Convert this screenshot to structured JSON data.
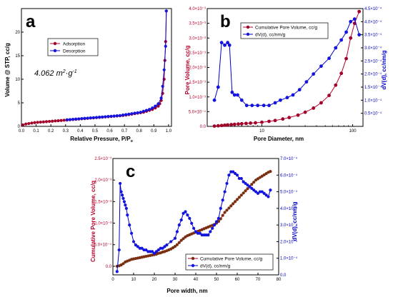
{
  "chart_data": [
    {
      "id": "a",
      "type": "line",
      "panel_label": "a",
      "xlabel": "Relative Pressure, P/P",
      "xlabel_sub": "o",
      "ylabel": "Volume @ STP, cc/g",
      "xlim": [
        0.0,
        1.02
      ],
      "ylim": [
        0,
        25
      ],
      "xticks": [
        0.0,
        0.1,
        0.2,
        0.3,
        0.4,
        0.5,
        0.6,
        0.7,
        0.8,
        0.9,
        1.0
      ],
      "xtick_labels": [
        "0.0",
        "0.1",
        "0.2",
        "0.3",
        "0.4",
        "0.5",
        "0.6",
        "0.7",
        "0.8",
        "0.9",
        "1.0"
      ],
      "yticks": [
        0,
        5,
        10,
        15,
        20
      ],
      "ytick_labels": [
        "0",
        "5",
        "10",
        "15",
        "20"
      ],
      "annotation": {
        "text": "4.062 m",
        "sup1": "2",
        "mid": "·g",
        "sup2": "-1"
      },
      "legend_position": "top-center",
      "series": [
        {
          "name": "Adsorption",
          "color": "#b8002a",
          "marker_color": "#a0002a",
          "x": [
            0.01,
            0.03,
            0.05,
            0.07,
            0.09,
            0.11,
            0.13,
            0.15,
            0.17,
            0.19,
            0.21,
            0.23,
            0.25,
            0.27,
            0.29,
            0.31,
            0.33,
            0.35,
            0.37,
            0.39,
            0.41,
            0.43,
            0.45,
            0.47,
            0.49,
            0.51,
            0.53,
            0.55,
            0.57,
            0.59,
            0.61,
            0.63,
            0.65,
            0.67,
            0.69,
            0.71,
            0.73,
            0.75,
            0.77,
            0.79,
            0.81,
            0.83,
            0.85,
            0.87,
            0.89,
            0.91,
            0.93,
            0.94,
            0.95,
            0.96,
            0.97,
            0.975,
            0.98,
            0.985
          ],
          "y": [
            0.3,
            0.5,
            0.6,
            0.7,
            0.8,
            0.85,
            0.9,
            0.95,
            1.0,
            1.05,
            1.1,
            1.15,
            1.2,
            1.25,
            1.3,
            1.35,
            1.4,
            1.45,
            1.5,
            1.55,
            1.6,
            1.65,
            1.7,
            1.75,
            1.8,
            1.85,
            1.9,
            1.95,
            2.0,
            2.05,
            2.1,
            2.15,
            2.2,
            2.25,
            2.3,
            2.4,
            2.5,
            2.6,
            2.7,
            2.8,
            2.9,
            3.0,
            3.2,
            3.4,
            3.6,
            3.9,
            4.3,
            4.8,
            5.5,
            7.0,
            10.0,
            14.0,
            18.0,
            24.5
          ]
        },
        {
          "name": "Desorption",
          "color": "#0000c8",
          "marker_color": "#1414e0",
          "x": [
            0.31,
            0.33,
            0.35,
            0.37,
            0.39,
            0.41,
            0.43,
            0.45,
            0.47,
            0.49,
            0.51,
            0.53,
            0.55,
            0.57,
            0.59,
            0.61,
            0.63,
            0.65,
            0.67,
            0.69,
            0.71,
            0.73,
            0.75,
            0.77,
            0.79,
            0.81,
            0.83,
            0.85,
            0.87,
            0.89,
            0.91,
            0.93,
            0.95,
            0.96,
            0.97,
            0.98,
            0.985
          ],
          "y": [
            1.4,
            1.45,
            1.5,
            1.55,
            1.6,
            1.65,
            1.7,
            1.75,
            1.8,
            1.85,
            1.9,
            1.95,
            2.0,
            2.05,
            2.1,
            2.15,
            2.2,
            2.25,
            2.3,
            2.4,
            2.5,
            2.6,
            2.7,
            2.8,
            2.9,
            3.0,
            3.2,
            3.4,
            3.6,
            3.9,
            4.3,
            4.8,
            6.0,
            8.5,
            12.0,
            17.0,
            24.5
          ]
        }
      ]
    },
    {
      "id": "b",
      "type": "line",
      "panel_label": "b",
      "xlabel": "Pore Diameter, nm",
      "ylabel": "Pore Volume, cc/g",
      "y2label": "dV(d), cc/nm/g",
      "xscale": "log",
      "xlim": [
        2.5,
        130
      ],
      "ylim": [
        0,
        0.004
      ],
      "y2lim": [
        0,
        0.00045
      ],
      "xticks": [
        10,
        100
      ],
      "xtick_labels": [
        "10",
        "100"
      ],
      "yticks": [
        0,
        0.0005,
        0.001,
        0.0015,
        0.002,
        0.0025,
        0.003,
        0.0035,
        0.004
      ],
      "ytick_labels": [
        "0.0",
        "5.0×10⁻⁴",
        "1.0×10⁻³",
        "1.5×10⁻³",
        "2.0×10⁻³",
        "2.5×10⁻³",
        "3.0×10⁻³",
        "3.5×10⁻³",
        "4.0×10⁻³"
      ],
      "y2ticks": [
        5e-05,
        0.0001,
        0.00015,
        0.0002,
        0.00025,
        0.0003,
        0.00035,
        0.0004,
        0.00045
      ],
      "y2tick_labels": [
        "0.5×10⁻⁴",
        "1.0×10⁻⁴",
        "1.5×10⁻⁴",
        "2.0×10⁻⁴",
        "2.5×10⁻⁴",
        "3.0×10⁻⁴",
        "3.5×10⁻⁴",
        "4.0×10⁻⁴",
        "4.5×10⁻⁴"
      ],
      "legend_position": "top-center",
      "series": [
        {
          "name": "Cumulative Pore Volume, cc/g",
          "axis": "left",
          "color": "#b8002a",
          "marker_color": "#a0002a",
          "x": [
            3.0,
            3.3,
            3.6,
            3.9,
            4.2,
            4.6,
            5.0,
            5.5,
            6.0,
            6.7,
            7.5,
            8.5,
            10,
            12,
            14,
            17,
            20,
            25,
            30,
            37,
            45,
            55,
            65,
            75,
            85,
            95,
            105,
            118
          ],
          "y": [
            1e-05,
            2e-05,
            3e-05,
            4e-05,
            5e-05,
            6e-05,
            7e-05,
            8e-05,
            9e-05,
            0.0001,
            0.00011,
            0.00012,
            0.00014,
            0.00017,
            0.0002,
            0.00025,
            0.0003,
            0.00038,
            0.00048,
            0.00062,
            0.0008,
            0.00105,
            0.0014,
            0.0018,
            0.0023,
            0.003,
            0.0035,
            0.0039
          ]
        },
        {
          "name": "dV(d), cc/nm/g",
          "axis": "right",
          "color": "#0000c8",
          "marker_color": "#1414e0",
          "x": [
            3.0,
            3.3,
            3.6,
            3.9,
            4.2,
            4.4,
            4.7,
            5.0,
            5.4,
            6.0,
            6.8,
            7.8,
            9,
            10.5,
            12,
            14,
            16,
            19,
            22,
            26,
            31,
            37,
            45,
            55,
            65,
            75,
            85,
            95,
            105,
            118
          ],
          "y": [
            0.0001,
            0.00015,
            0.00032,
            0.00031,
            0.00032,
            0.00031,
            0.00013,
            0.00012,
            0.00012,
            0.0001,
            8e-05,
            8e-05,
            8e-05,
            8e-05,
            8e-05,
            9e-05,
            0.0001,
            0.00011,
            0.00012,
            0.00014,
            0.00017,
            0.0002,
            0.00023,
            0.00026,
            0.0003,
            0.00033,
            0.00036,
            0.0004,
            0.00041,
            0.00035
          ]
        }
      ]
    },
    {
      "id": "c",
      "type": "line",
      "panel_label": "c",
      "xlabel": "Pore width, nm",
      "ylabel": "Cumulative Pore Volume, cc/g",
      "y2label": "dV(d), cc/nm/g",
      "xlim": [
        0,
        80
      ],
      "ylim": [
        -0.0002,
        0.0025
      ],
      "y2lim": [
        0,
        0.0007
      ],
      "xticks": [
        0,
        10,
        20,
        30,
        40,
        50,
        60,
        70,
        80
      ],
      "xtick_labels": [
        "0",
        "10",
        "20",
        "30",
        "40",
        "50",
        "60",
        "70",
        "80"
      ],
      "yticks": [
        0,
        0.0005,
        0.001,
        0.0015,
        0.002,
        0.0025
      ],
      "ytick_labels": [
        "0.0",
        "5.0×10⁻⁴",
        "1.0×10⁻³",
        "1.5×10⁻³",
        "2.0×10⁻³",
        "2.5×10⁻³"
      ],
      "y2ticks": [
        0,
        0.0001,
        0.0002,
        0.0003,
        0.0004,
        0.0005,
        0.0006,
        0.0007
      ],
      "y2tick_labels": [
        "0.0",
        "1.0×10⁻⁴",
        "2.0×10⁻⁴",
        "3.0×10⁻⁴",
        "4.0×10⁻⁴",
        "5.0×10⁻⁴",
        "6.0×10⁻⁴",
        "7.0×10⁻⁴"
      ],
      "legend_position": "bottom-right",
      "series": [
        {
          "name": "Cumulative Pore Volume, cc/g",
          "axis": "left",
          "color": "#b8002a",
          "marker_color": "#7a3010",
          "x": [
            2,
            3,
            4,
            5,
            6,
            7,
            8,
            9,
            10,
            11,
            12,
            13,
            14,
            15,
            16,
            17,
            18,
            19,
            20,
            21,
            22,
            23,
            24,
            25,
            26,
            27,
            28,
            29,
            30,
            31,
            32,
            33,
            34,
            35,
            36,
            37,
            38,
            39,
            40,
            41,
            42,
            43,
            44,
            45,
            46,
            47,
            48,
            49,
            50,
            51,
            52,
            53,
            54,
            55,
            56,
            57,
            58,
            59,
            60,
            61,
            62,
            63,
            64,
            65,
            66,
            67,
            68,
            69,
            70,
            71,
            72,
            73,
            74,
            75,
            76
          ],
          "y": [
            0.0,
            1e-05,
            3e-05,
            6e-05,
            0.0001,
            0.00012,
            0.00014,
            0.00016,
            0.00017,
            0.00018,
            0.00019,
            0.0002,
            0.00021,
            0.00022,
            0.00023,
            0.00024,
            0.00025,
            0.00026,
            0.00027,
            0.00028,
            0.0003,
            0.00031,
            0.00033,
            0.00034,
            0.00036,
            0.00038,
            0.0004,
            0.00043,
            0.00046,
            0.0005,
            0.00055,
            0.0006,
            0.00064,
            0.00068,
            0.00071,
            0.00073,
            0.00075,
            0.00077,
            0.00079,
            0.00081,
            0.00083,
            0.00085,
            0.00087,
            0.00089,
            0.00091,
            0.00093,
            0.00095,
            0.00097,
            0.001,
            0.00104,
            0.0011,
            0.00118,
            0.00125,
            0.0013,
            0.00135,
            0.0014,
            0.00145,
            0.0015,
            0.00155,
            0.0016,
            0.00165,
            0.0017,
            0.00175,
            0.0018,
            0.00185,
            0.0019,
            0.00195,
            0.002,
            0.00203,
            0.00206,
            0.00209,
            0.00212,
            0.00215,
            0.00218,
            0.0022
          ]
        },
        {
          "name": "dV(d), cc/nm/g",
          "axis": "right",
          "color": "#0000c8",
          "marker_color": "#1414e0",
          "x": [
            2,
            3,
            3.5,
            4,
            4.5,
            5,
            5.5,
            6,
            6.5,
            7,
            8,
            9,
            10,
            11,
            12,
            13,
            14,
            15,
            16,
            17,
            18,
            19,
            20,
            21,
            22,
            23,
            24,
            25,
            26,
            28,
            30,
            31,
            32,
            33,
            34,
            35,
            36,
            37,
            38,
            39,
            40,
            41,
            42,
            43,
            44,
            45,
            46,
            47,
            48,
            49,
            50,
            51,
            52,
            53,
            54,
            55,
            56,
            57,
            58,
            59,
            60,
            61,
            62,
            63,
            64,
            65,
            66,
            67,
            68,
            69,
            70,
            71,
            72,
            73,
            74,
            75,
            76
          ],
          "y": [
            2e-05,
            0.00015,
            0.00055,
            0.0005,
            0.00048,
            0.00046,
            0.00044,
            0.00042,
            0.0004,
            0.00036,
            0.0003,
            0.00025,
            0.0002,
            0.00018,
            0.00017,
            0.00016,
            0.00016,
            0.00015,
            0.00015,
            0.00014,
            0.00014,
            0.00014,
            0.00013,
            0.00014,
            0.00015,
            0.00016,
            0.00016,
            0.00017,
            0.00018,
            0.0002,
            0.00022,
            0.00026,
            0.0003,
            0.00033,
            0.00037,
            0.00038,
            0.00036,
            0.00034,
            0.00031,
            0.00028,
            0.00026,
            0.00025,
            0.00025,
            0.00024,
            0.00024,
            0.00024,
            0.00024,
            0.00026,
            0.00028,
            0.0003,
            0.00032,
            0.00034,
            0.0004,
            0.00045,
            0.0005,
            0.00055,
            0.0006,
            0.00062,
            0.00062,
            0.00061,
            0.0006,
            0.00058,
            0.00058,
            0.00056,
            0.00055,
            0.00054,
            0.00053,
            0.00052,
            0.00051,
            0.0005,
            0.00049,
            0.0005,
            0.0005,
            0.00049,
            0.00048,
            0.00047,
            0.00051
          ]
        }
      ]
    }
  ]
}
